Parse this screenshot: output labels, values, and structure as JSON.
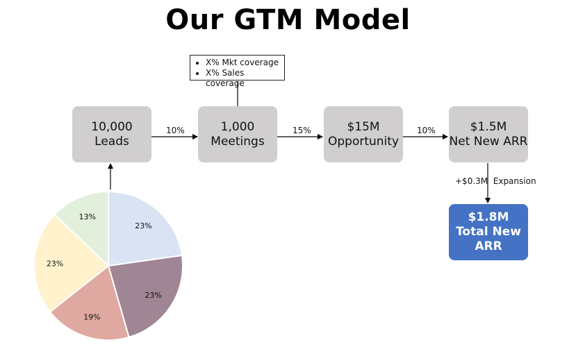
{
  "title": "Our GTM Model",
  "note": {
    "bullets": [
      "X% Mkt coverage",
      "X% Sales coverage"
    ]
  },
  "boxes": {
    "leads": {
      "line1": "10,000",
      "line2": "Leads"
    },
    "meetings": {
      "line1": "1,000",
      "line2": "Meetings"
    },
    "opportunity": {
      "line1": "$15M",
      "line2": "Opportunity"
    },
    "net_new": {
      "line1": "$1.5M",
      "line2": "Net New ARR"
    },
    "total": {
      "line1": "$1.8M",
      "line2": "Total New",
      "line3": "ARR"
    }
  },
  "conversion_labels": {
    "leads_to_meetings": "10%",
    "meetings_to_opportunity": "15%",
    "opportunity_to_net_new": "10%",
    "expansion": "+$0.3M  Expansion"
  },
  "colors": {
    "box_gray": "#d0cece",
    "box_blue": "#4472c4"
  },
  "chart_data": {
    "type": "pie",
    "values": [
      23,
      23,
      19,
      23,
      13
    ],
    "labels": [
      "23%",
      "23%",
      "19%",
      "23%",
      "13%"
    ],
    "colors": [
      "#dae3f3",
      "#a08594",
      "#dfa9a1",
      "#fff2cc",
      "#e2efda"
    ]
  }
}
